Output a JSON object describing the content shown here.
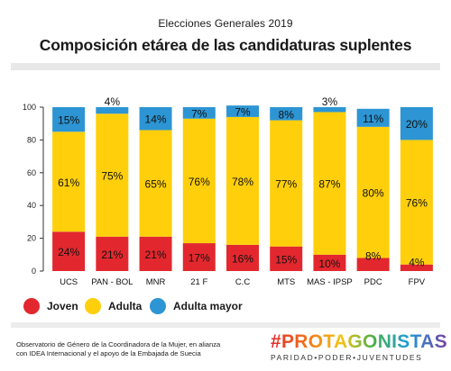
{
  "header": {
    "subtitle": "Elecciones Generales 2019",
    "title": "Composición etárea de las candidaturas suplentes"
  },
  "colors": {
    "joven": "#e2282e",
    "adulta": "#ffcf0b",
    "adulta_mayor": "#2d95d3"
  },
  "chart_data": {
    "type": "bar",
    "stacked": true,
    "categories": [
      "UCS",
      "PAN - BOL",
      "MNR",
      "21 F",
      "C.C",
      "MTS",
      "MAS - IPSP",
      "PDC",
      "FPV"
    ],
    "series": [
      {
        "name": "Joven",
        "values": [
          24,
          21,
          21,
          17,
          16,
          15,
          10,
          8,
          4
        ]
      },
      {
        "name": "Adulta",
        "values": [
          61,
          75,
          65,
          76,
          78,
          77,
          87,
          80,
          76
        ]
      },
      {
        "name": "Adulta mayor",
        "values": [
          15,
          4,
          14,
          7,
          7,
          8,
          3,
          11,
          20
        ]
      }
    ],
    "labels": [
      [
        "24%",
        "21%",
        "21%",
        "17%",
        "16%",
        "15%",
        "10%",
        "8%",
        "4%"
      ],
      [
        "61%",
        "75%",
        "65%",
        "76%",
        "78%",
        "77%",
        "87%",
        "80%",
        "76%"
      ],
      [
        "15%",
        "4%",
        "14%",
        "7%",
        "7%",
        "8%",
        "3%",
        "11%",
        "20%"
      ]
    ],
    "yticks": [
      "0",
      "20",
      "40",
      "60",
      "80",
      "100"
    ],
    "ylim": [
      0,
      100
    ],
    "grid": false,
    "legend_position": "bottom-left"
  },
  "legend": {
    "items": [
      {
        "label": "Joven"
      },
      {
        "label": "Adulta"
      },
      {
        "label": "Adulta mayor"
      }
    ]
  },
  "footer": {
    "credit_line1": "Observatorio de Género de la Coordinadora de la Mujer, en alianza",
    "credit_line2": "con IDEA Internacional y el apoyo de la Embajada de Suecia",
    "brand_name": "#PROTAGONISTAS",
    "brand_tagline": "PARIDAD•PODER•JUVENTUDES"
  }
}
